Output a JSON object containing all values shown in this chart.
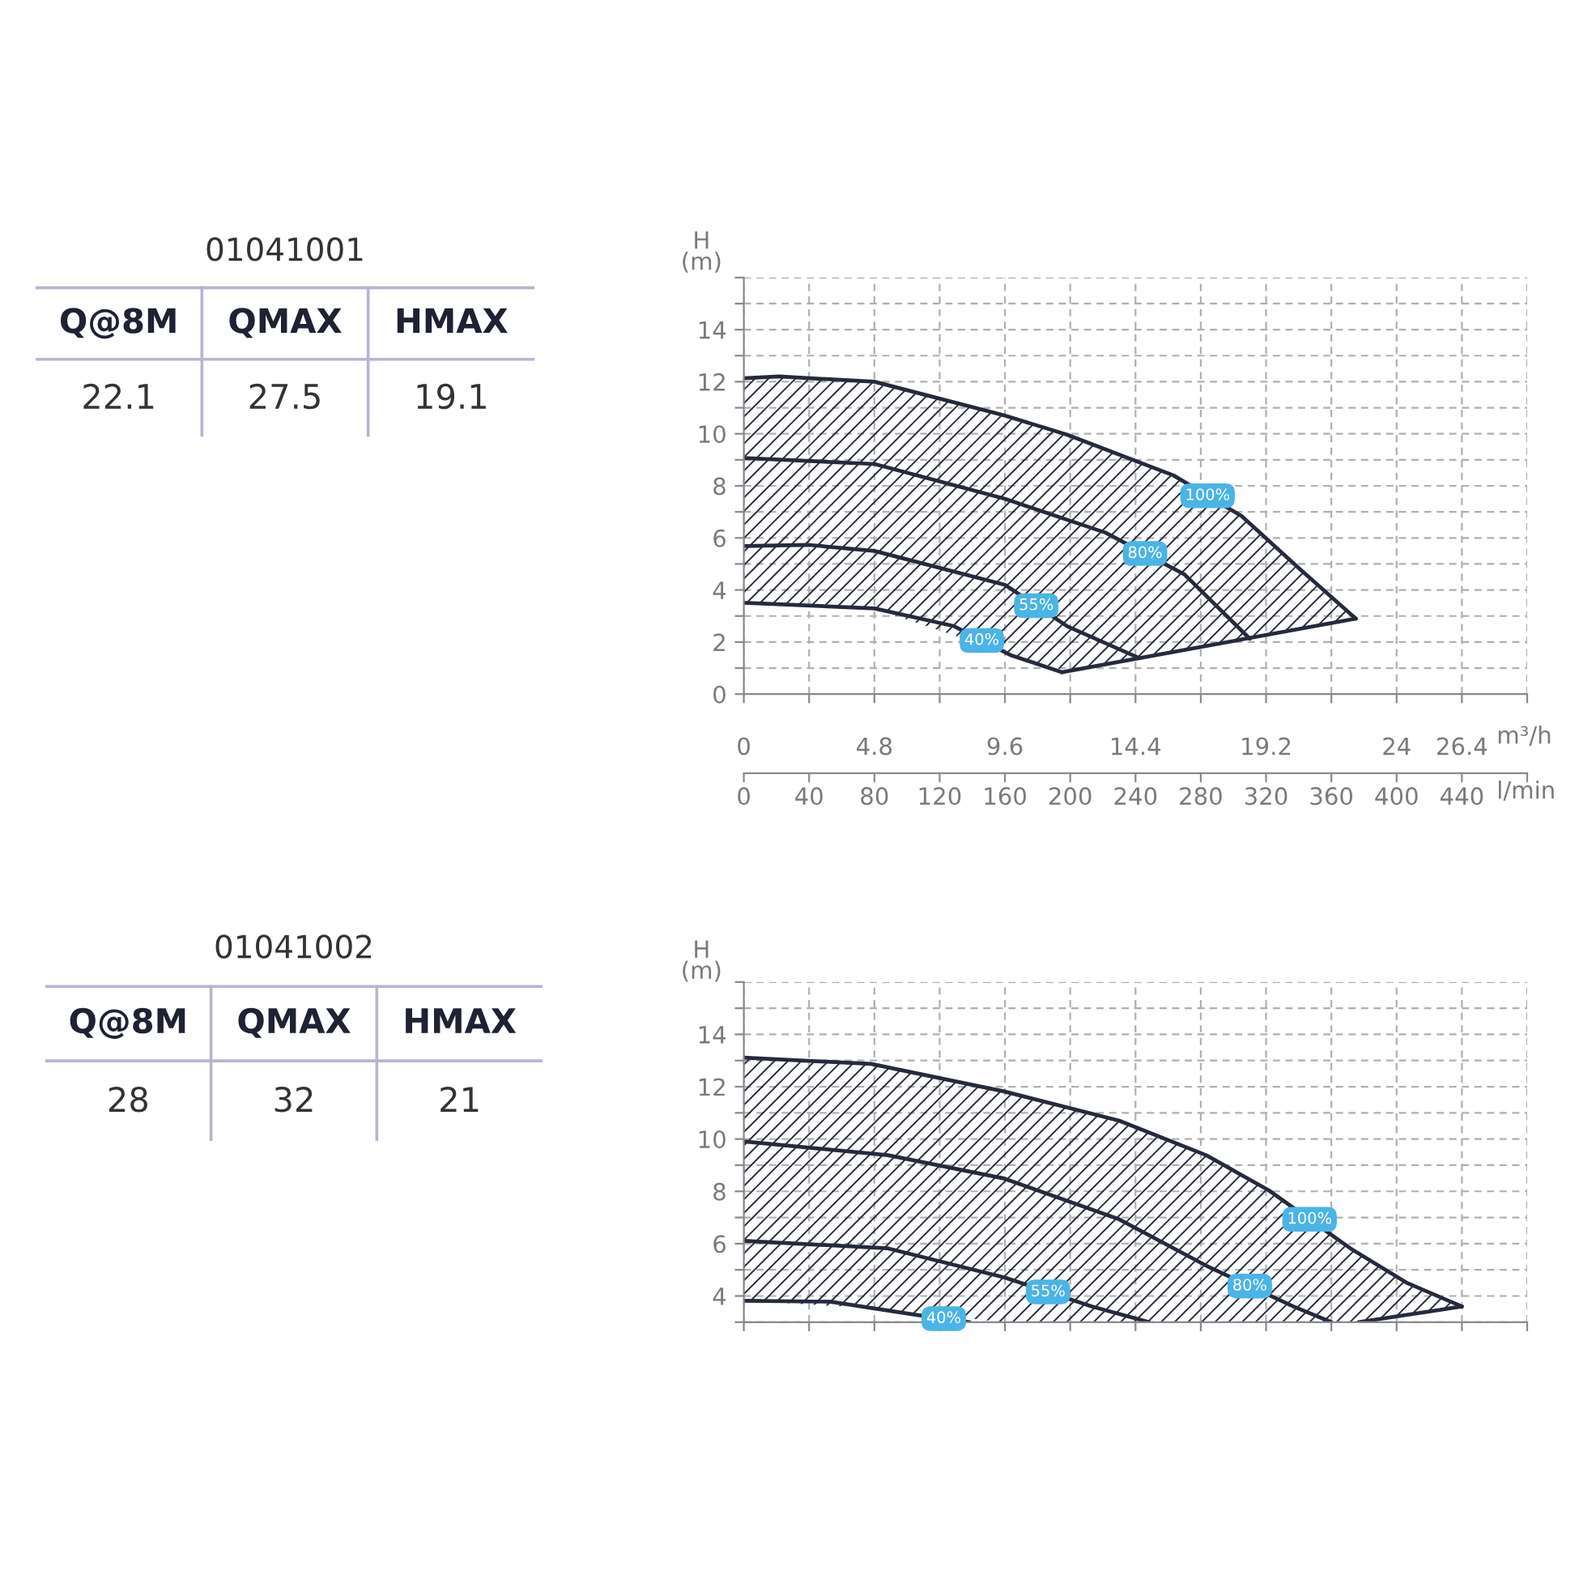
{
  "chart_data": [
    {
      "type": "other",
      "title": "01041001",
      "categories": [
        "Q@8M",
        "QMAX",
        "HMAX"
      ],
      "values": [
        22.1,
        27.5,
        19.1
      ],
      "data_labels": true
    },
    {
      "type": "line",
      "ylabel": "H\n(m)",
      "xlabel": "m³/h",
      "x2label": "l/min",
      "xlim": [
        0,
        28.8
      ],
      "ylim": [
        0,
        16
      ],
      "x2lim": [
        0,
        480
      ],
      "grid": true,
      "xticks": [
        0,
        {
          "value": 2.4,
          "label": null
        },
        4.8,
        {
          "value": 7.2,
          "label": null
        },
        9.6,
        {
          "value": 12,
          "label": null
        },
        14.4,
        {
          "value": 16.8,
          "label": null
        },
        19.2,
        {
          "value": 21.6,
          "label": null
        },
        24,
        26.4,
        {
          "value": 28.8,
          "label": null
        }
      ],
      "x2ticks": [
        0,
        40,
        80,
        120,
        160,
        200,
        240,
        280,
        320,
        360,
        400,
        440,
        {
          "value": 480,
          "label": null
        }
      ],
      "yticks": [
        0,
        {
          "value": 1,
          "label": null
        },
        2,
        {
          "value": 3,
          "label": null
        },
        4,
        {
          "value": 5,
          "label": null
        },
        6,
        {
          "value": 7,
          "label": null
        },
        8,
        {
          "value": 9,
          "label": null
        },
        10,
        {
          "value": 11,
          "label": null
        },
        12,
        {
          "value": 13,
          "label": null
        },
        14,
        {
          "value": 15,
          "label": null
        },
        {
          "value": 16,
          "label": null
        }
      ],
      "series": [
        {
          "name": "100%",
          "color": "#262a3d",
          "x": [
            0,
            1.3,
            4.8,
            9.6,
            11.9,
            15.8,
            18.3,
            20.4,
            22.5
          ],
          "values": [
            12.13,
            12.2,
            12.0,
            10.7,
            9.96,
            8.4,
            6.84,
            4.84,
            2.9
          ],
          "lower": [
            3.51,
            3.45,
            3.29,
            1.6,
            0.88,
            1.62,
            2.1,
            2.5,
            2.9
          ],
          "upper": [
            12.13,
            12.2,
            12.0,
            10.7,
            9.96,
            8.4,
            6.84,
            4.84,
            2.9
          ]
        },
        {
          "name": "80%",
          "color": "#262a3d",
          "x": [
            0,
            4.8,
            9.6,
            13.3,
            16.2,
            18.6
          ],
          "values": [
            9.07,
            8.84,
            7.5,
            6.2,
            4.6,
            2.13
          ]
        },
        {
          "name": "55%",
          "color": "#262a3d",
          "x": [
            0,
            2.4,
            4.8,
            9.6,
            11.9,
            14.5
          ],
          "values": [
            5.69,
            5.73,
            5.5,
            4.2,
            2.6,
            1.4
          ]
        },
        {
          "name": "40%",
          "color": "#262a3d",
          "x": [
            0,
            4.8,
            7.7,
            9.8,
            11.7
          ],
          "values": [
            3.51,
            3.29,
            2.62,
            1.5,
            0.84
          ]
        },
        {
          "color": "#262a3d",
          "x": [
            11.7,
            22.5
          ],
          "values": [
            0.84,
            2.9
          ]
        }
      ]
    },
    {
      "type": "other",
      "title": "01041002",
      "categories": [
        "Q@8M",
        "QMAX",
        "HMAX"
      ],
      "values": [
        28,
        32,
        21
      ],
      "data_labels": true
    },
    {
      "type": "line",
      "ylabel": "H\n(m)",
      "xlim": [
        0,
        28.8
      ],
      "ylim": [
        3,
        16
      ],
      "grid": true,
      "tick_labels": "y",
      "xticks": [
        {
          "value": 0,
          "label": null
        },
        {
          "value": 2.4,
          "label": null
        },
        {
          "value": 4.8,
          "label": null
        },
        {
          "value": 7.2,
          "label": null
        },
        {
          "value": 9.6,
          "label": null
        },
        {
          "value": 12,
          "label": null
        },
        {
          "value": 14.4,
          "label": null
        },
        {
          "value": 16.8,
          "label": null
        },
        {
          "value": 19.2,
          "label": null
        },
        {
          "value": 21.6,
          "label": null
        },
        {
          "value": 24,
          "label": null
        },
        {
          "value": 26.4,
          "label": null
        },
        {
          "value": 28.8,
          "label": null
        }
      ],
      "yticks": [
        {
          "value": 3,
          "label": null
        },
        4,
        {
          "value": 5,
          "label": null
        },
        6,
        {
          "value": 7,
          "label": null
        },
        8,
        {
          "value": 9,
          "label": null
        },
        10,
        {
          "value": 11,
          "label": null
        },
        12,
        {
          "value": 13,
          "label": null
        },
        14,
        {
          "value": 15,
          "label": null
        },
        {
          "value": 16,
          "label": null
        }
      ],
      "series": [
        {
          "name": "100%",
          "color": "#262a3d",
          "x": [
            0,
            4.68,
            9.57,
            13.8,
            17.0,
            19.3,
            22.3,
            24.4,
            26.4
          ],
          "values": [
            13.11,
            12.87,
            11.82,
            10.7,
            9.38,
            8.04,
            5.82,
            4.49,
            3.6
          ],
          "lower": [
            3.82,
            3.54,
            3.0,
            3.0,
            3.0,
            3.0,
            3.0,
            3.28,
            3.6
          ],
          "upper": [
            13.11,
            12.87,
            11.82,
            10.7,
            9.38,
            8.04,
            5.82,
            4.49,
            3.6
          ]
        },
        {
          "name": "80%",
          "color": "#262a3d",
          "x": [
            0,
            5.3,
            9.57,
            13.8,
            17.0,
            20.2,
            21.6
          ],
          "values": [
            9.91,
            9.38,
            8.49,
            6.93,
            5.16,
            3.6,
            3.0
          ]
        },
        {
          "name": "55%",
          "color": "#262a3d",
          "x": [
            0,
            5.3,
            9.57,
            12.8,
            14.9
          ],
          "values": [
            6.11,
            5.82,
            4.71,
            3.6,
            3.0
          ]
        },
        {
          "name": "40%",
          "color": "#262a3d",
          "x": [
            0,
            3.2,
            6.4,
            8.3
          ],
          "values": [
            3.82,
            3.78,
            3.27,
            3.0
          ]
        },
        {
          "color": "#262a3d",
          "x": [
            22.6,
            26.4
          ],
          "values": [
            3.0,
            3.6
          ]
        }
      ]
    }
  ]
}
